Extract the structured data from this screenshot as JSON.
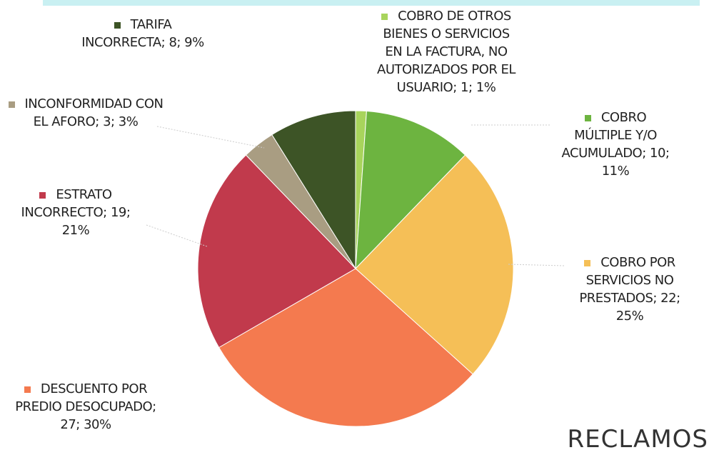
{
  "chart_data": {
    "type": "pie",
    "title": "RECLAMOS",
    "categories": [
      "COBRO DE OTROS BIENES O SERVICIOS EN LA FACTURA, NO AUTORIZADOS POR EL USUARIO;",
      "COBRO MÚLTIPLE Y/O ACUMULADO;",
      "COBRO POR SERVICIOS NO PRESTADOS;",
      "DESCUENTO POR PREDIO DESOCUPADO;",
      "ESTRATO INCORRECTO;",
      "INCONFORMIDAD CON EL AFORO;",
      "TARIFA INCORRECTA;"
    ],
    "values": [
      1,
      10,
      22,
      27,
      19,
      3,
      8
    ],
    "value_labels": [
      "1; 1%",
      "10; 11%",
      "22; 25%",
      "27; 30%",
      "19; 21%",
      "3; 3%",
      "8; 9%"
    ],
    "colors": [
      "#a8d45c",
      "#6db440",
      "#f5bf57",
      "#f47a4f",
      "#c13a4c",
      "#a99d82",
      "#3d5426"
    ]
  }
}
